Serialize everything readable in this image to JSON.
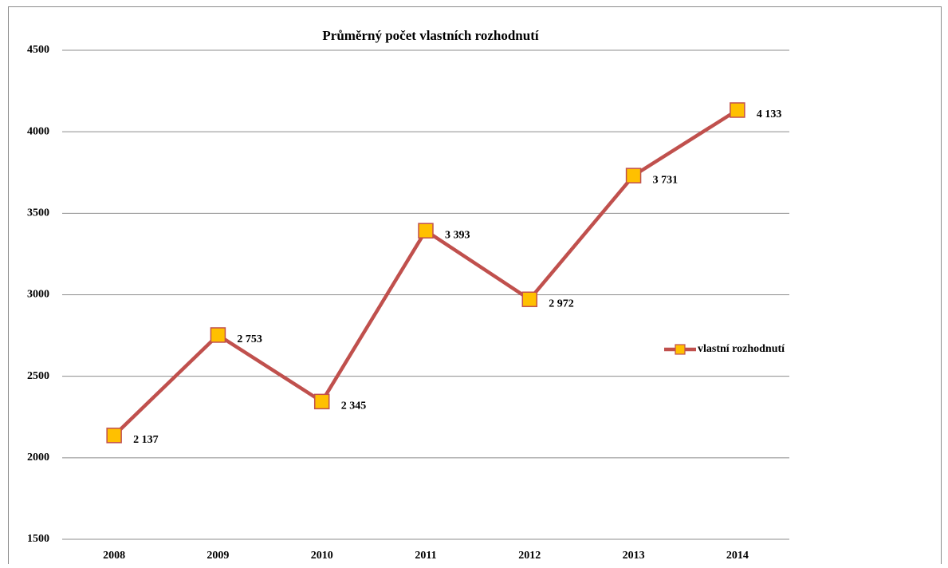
{
  "chart_data": {
    "type": "line",
    "title": "Průměrný počet vlastních rozhodnutí",
    "categories": [
      "2008",
      "2009",
      "2010",
      "2011",
      "2012",
      "2013",
      "2014"
    ],
    "series": [
      {
        "name": "vlastní rozhodnutí",
        "color": "#c0504d",
        "marker_color": "#ffc000",
        "values": [
          2137,
          2753,
          2345,
          3393,
          2972,
          3731,
          4133
        ],
        "value_labels": [
          "2 137",
          "2 753",
          "2 345",
          "3 393",
          "2 972",
          "3 731",
          "4 133"
        ]
      }
    ],
    "ylim": [
      1500,
      4500
    ],
    "yticks": [
      1500,
      2000,
      2500,
      3000,
      3500,
      4000,
      4500
    ],
    "grid": true,
    "legend": "right"
  }
}
